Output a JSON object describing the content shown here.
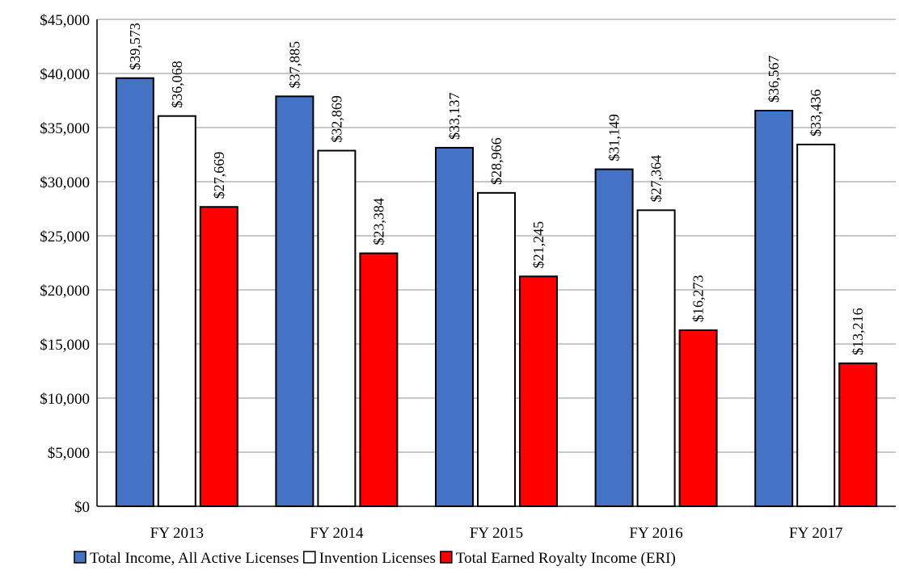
{
  "chart_data": {
    "type": "bar",
    "title": "",
    "xlabel": "",
    "ylabel": "",
    "categories": [
      "FY 2013",
      "FY 2014",
      "FY 2015",
      "FY 2016",
      "FY 2017"
    ],
    "series": [
      {
        "name": "Total Income, All Active Licenses",
        "color": "#4472C4",
        "values": [
          39573,
          37885,
          33137,
          31149,
          36567
        ],
        "labels": [
          "$39,573",
          "$37,885",
          "$33,137",
          "$31,149",
          "$36,567"
        ]
      },
      {
        "name": "Invention Licenses",
        "color": "#FFFFFF",
        "values": [
          36068,
          32869,
          28966,
          27364,
          33436
        ],
        "labels": [
          "$36,068",
          "$32,869",
          "$28,966",
          "$27,364",
          "$33,436"
        ]
      },
      {
        "name": "Total Earned Royalty Income (ERI)",
        "color": "#FF0000",
        "values": [
          27669,
          23384,
          21245,
          16273,
          13216
        ],
        "labels": [
          "$27,669",
          "$23,384",
          "$21,245",
          "$16,273",
          "$13,216"
        ]
      }
    ],
    "ylim": [
      0,
      45000
    ],
    "yticks": [
      {
        "value": 0,
        "label": "$0"
      },
      {
        "value": 5000,
        "label": "$5,000"
      },
      {
        "value": 10000,
        "label": "$10,000"
      },
      {
        "value": 15000,
        "label": "$15,000"
      },
      {
        "value": 20000,
        "label": "$20,000"
      },
      {
        "value": 25000,
        "label": "$25,000"
      },
      {
        "value": 30000,
        "label": "$30,000"
      },
      {
        "value": 35000,
        "label": "$35,000"
      },
      {
        "value": 40000,
        "label": "$40,000"
      },
      {
        "value": 45000,
        "label": "$45,000"
      }
    ],
    "grid": true,
    "legend_position": "bottom",
    "data_label_rotation": "vertical"
  }
}
